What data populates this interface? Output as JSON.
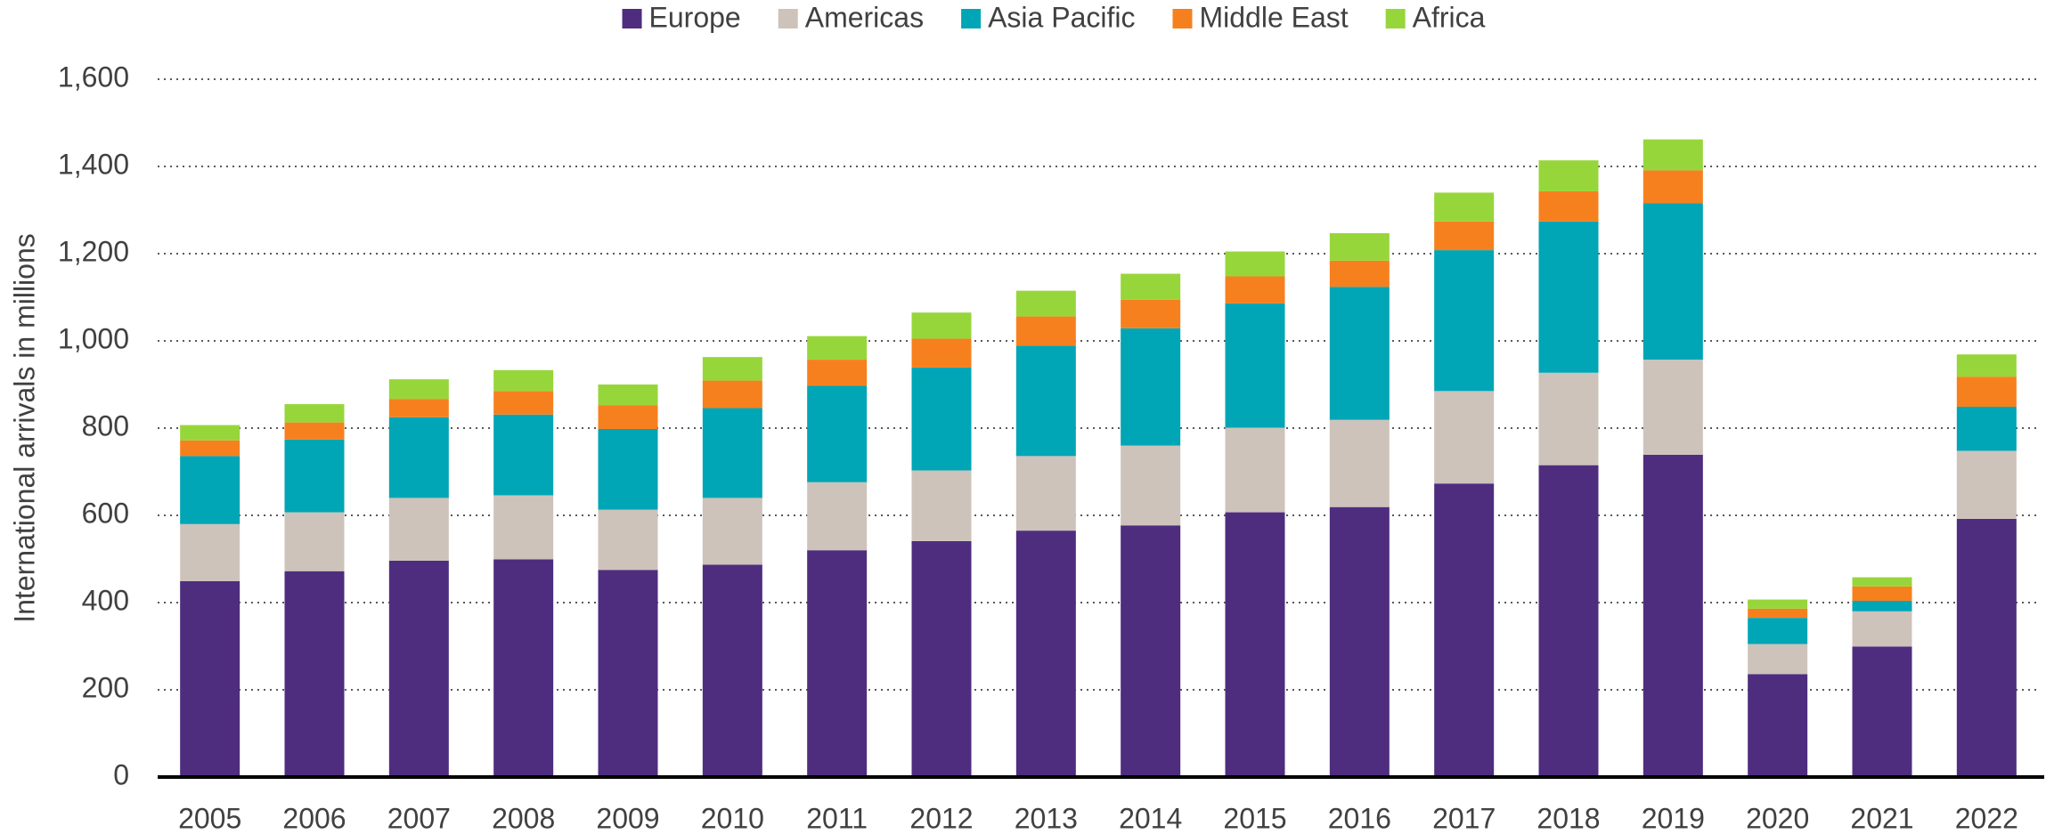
{
  "chart_data": {
    "type": "stacked_bar",
    "y_label": "International arrivals in millions",
    "categories": [
      "2005",
      "2006",
      "2007",
      "2008",
      "2009",
      "2010",
      "2011",
      "2012",
      "2013",
      "2014",
      "2015",
      "2016",
      "2017",
      "2018",
      "2019",
      "2020",
      "2021",
      "2022"
    ],
    "series": [
      {
        "name": "Europe",
        "color": "#4e2d7f",
        "values": [
          449,
          472,
          496,
          499,
          475,
          487,
          520,
          541,
          565,
          577,
          607,
          619,
          673,
          715,
          739,
          236,
          299,
          592
        ]
      },
      {
        "name": "Americas",
        "color": "#cdc3bb",
        "values": [
          131,
          135,
          144,
          147,
          138,
          153,
          156,
          162,
          171,
          183,
          194,
          200,
          212,
          212,
          218,
          69,
          81,
          156
        ]
      },
      {
        "name": "Asia Pacific",
        "color": "#00a6b5",
        "values": [
          156,
          167,
          185,
          185,
          185,
          206,
          221,
          236,
          253,
          269,
          285,
          305,
          323,
          347,
          359,
          60,
          24,
          101
        ]
      },
      {
        "name": "Middle East",
        "color": "#f7801e",
        "values": [
          36,
          39,
          42,
          54,
          54,
          63,
          60,
          66,
          67,
          65,
          62,
          60,
          66,
          69,
          75,
          21,
          33,
          69
        ]
      },
      {
        "name": "Africa",
        "color": "#97d63b",
        "values": [
          35,
          42,
          45,
          48,
          48,
          54,
          54,
          60,
          59,
          60,
          57,
          63,
          66,
          71,
          71,
          21,
          21,
          51
        ]
      }
    ],
    "ylim": [
      0,
      1600
    ],
    "yticks": [
      0,
      200,
      400,
      600,
      800,
      {
        "value": 1000,
        "label": "1,000"
      },
      {
        "value": 1200,
        "label": "1,200"
      },
      {
        "value": 1400,
        "label": "1,400"
      },
      {
        "value": 1600,
        "label": "1,600"
      }
    ],
    "grid": true,
    "legend": "top"
  }
}
